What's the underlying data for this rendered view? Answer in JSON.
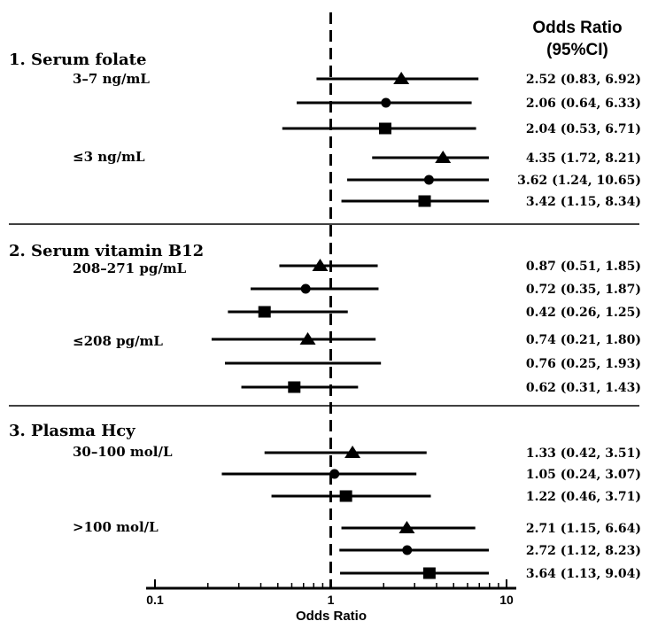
{
  "chart_data": {
    "type": "forest",
    "header": [
      "Odds Ratio",
      "(95%CI)"
    ],
    "xlabel": "Odds Ratio",
    "xscale": "log",
    "xlim": [
      0.1,
      10
    ],
    "x_tick_labels": [
      "0.1",
      "1",
      "10"
    ],
    "reference_line": 1,
    "sections": [
      {
        "title": "1.  Serum folate",
        "groups": [
          {
            "label": "3–7 ng/mL",
            "rows": [
              {
                "marker": "triangle",
                "or": 2.52,
                "lo": 0.83,
                "hi": 6.92,
                "text": "2.52 (0.83, 6.92)"
              },
              {
                "marker": "circle",
                "or": 2.06,
                "lo": 0.64,
                "hi": 6.33,
                "text": "2.06 (0.64, 6.33)"
              },
              {
                "marker": "square",
                "or": 2.04,
                "lo": 0.53,
                "hi": 6.71,
                "text": "2.04 (0.53, 6.71)"
              }
            ]
          },
          {
            "label": "≤3 ng/mL",
            "rows": [
              {
                "marker": "triangle",
                "or": 4.35,
                "lo": 1.72,
                "hi": 8.21,
                "text": "4.35 (1.72, 8.21)"
              },
              {
                "marker": "circle",
                "or": 3.62,
                "lo": 1.24,
                "hi": 10.65,
                "text": "3.62 (1.24, 10.65)"
              },
              {
                "marker": "square",
                "or": 3.42,
                "lo": 1.15,
                "hi": 8.34,
                "text": "3.42 (1.15, 8.34)"
              }
            ]
          }
        ]
      },
      {
        "title": "2.  Serum vitamin B12",
        "groups": [
          {
            "label": "208–271 pg/mL",
            "rows": [
              {
                "marker": "triangle",
                "or": 0.87,
                "lo": 0.51,
                "hi": 1.85,
                "text": "0.87 (0.51, 1.85)"
              },
              {
                "marker": "circle",
                "or": 0.72,
                "lo": 0.35,
                "hi": 1.87,
                "text": "0.72 (0.35, 1.87)"
              },
              {
                "marker": "square",
                "or": 0.42,
                "lo": 0.26,
                "hi": 1.25,
                "text": "0.42 (0.26, 1.25)"
              }
            ]
          },
          {
            "label": "≤208 pg/mL",
            "rows": [
              {
                "marker": "triangle",
                "or": 0.74,
                "lo": 0.21,
                "hi": 1.8,
                "text": "0.74 (0.21, 1.80)"
              },
              {
                "marker": "none",
                "or": 0.76,
                "lo": 0.25,
                "hi": 1.93,
                "text": "0.76 (0.25, 1.93)"
              },
              {
                "marker": "square",
                "or": 0.62,
                "lo": 0.31,
                "hi": 1.43,
                "text": "0.62 (0.31, 1.43)"
              }
            ]
          }
        ]
      },
      {
        "title": "3.  Plasma Hcy",
        "groups": [
          {
            "label": "30–100 mol/L",
            "rows": [
              {
                "marker": "triangle",
                "or": 1.33,
                "lo": 0.42,
                "hi": 3.51,
                "text": "1.33 (0.42, 3.51)"
              },
              {
                "marker": "circle",
                "or": 1.05,
                "lo": 0.24,
                "hi": 3.07,
                "text": "1.05 (0.24, 3.07)"
              },
              {
                "marker": "square",
                "or": 1.22,
                "lo": 0.46,
                "hi": 3.71,
                "text": "1.22 (0.46, 3.71)"
              }
            ]
          },
          {
            "label": ">100 mol/L",
            "rows": [
              {
                "marker": "triangle",
                "or": 2.71,
                "lo": 1.15,
                "hi": 6.64,
                "text": "2.71 (1.15, 6.64)"
              },
              {
                "marker": "circle",
                "or": 2.72,
                "lo": 1.12,
                "hi": 8.23,
                "text": "2.72 (1.12, 8.23)"
              },
              {
                "marker": "square",
                "or": 3.64,
                "lo": 1.13,
                "hi": 9.04,
                "text": "3.64 (1.13, 9.04)"
              }
            ]
          }
        ]
      }
    ]
  }
}
